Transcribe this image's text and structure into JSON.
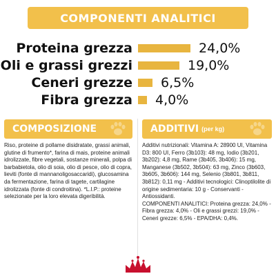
{
  "header": {
    "title": "COMPONENTI ANALITICI"
  },
  "analytics": [
    {
      "label": "Proteina grezza",
      "value": "24,0%",
      "level": 0.24
    },
    {
      "label": "Oli e grassi grezzi",
      "value": "19,0%",
      "level": 0.19
    },
    {
      "label": "Ceneri grezze",
      "value": "6,5%",
      "level": 0.065
    },
    {
      "label": "Fibra grezza",
      "value": "4,0%",
      "level": 0.04
    }
  ],
  "composition": {
    "title": "COMPOSIZIONE",
    "text": "Riso, proteine di pollame disidratate, grassi animali, glutine di frumento*, farina di mais, proteine animali idrolizzate, fibre vegetali, sostanze minerali, polpa di barbabietola, olio di soia, olio di pesce, olio di copra, lieviti (fonte di mannanoligosaccaridi), glucosamina da fermentazione, farina di tagete, cartilagine idrolizzata (fonte di condroitina). *L.I.P.: proteine selezionate per la loro elevata digeribilità."
  },
  "additives": {
    "title": "ADDITIVI",
    "subtitle": "(per kg)",
    "text": "Additivi nutrizionali: Vitamina A: 28900 UI, Vitamina D3: 800 UI, Ferro (3b103): 48 mg, Iodio (3b201, 3b202): 4,8 mg, Rame (3b405, 3b406): 15 mg, Manganese (3b502, 3b504): 63 mg, Zinco (3b603, 3b605, 3b606): 144 mg, Selenio (3b801, 3b811, 3b812): 0,11 mg - Additivi tecnologici: Clinoptilolite di origine sedimentaria: 10 g - Conservanti - Antiossidanti.",
    "analytic_summary": "COMPONENTI ANALITICI: Proteina grezza: 24,0% - Fibra grezza: 4,0% - Oli e grassi grezzi: 19,0% - Ceneri grezze: 6,5% - EPA/DHA: 0,4%."
  },
  "colors": {
    "accent": "#f2c04b",
    "bar": "#e8b53f",
    "logo": "#c8102e"
  },
  "logo": {
    "icon": "royal-canin-crown-icon"
  }
}
